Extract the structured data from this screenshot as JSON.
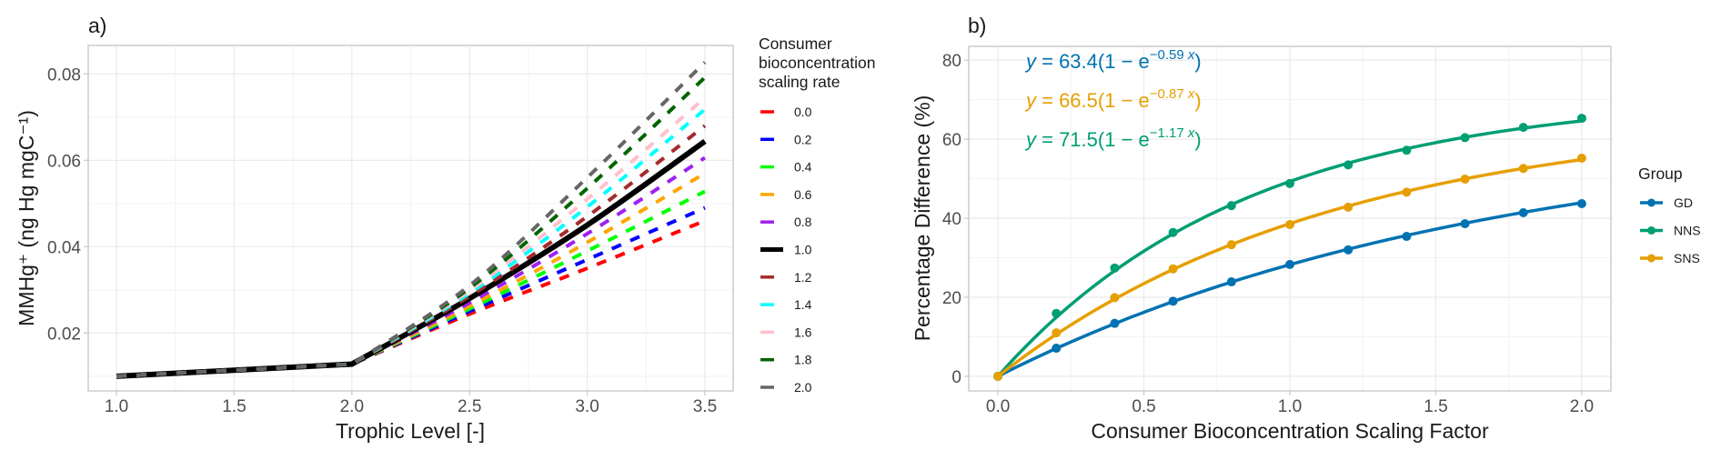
{
  "chart_data": [
    {
      "panel": "a)",
      "type": "line",
      "title": "",
      "xlabel": "Trophic Level [-]",
      "ylabel": "MMHg⁺ (ng Hg mgC⁻¹)",
      "xlim": [
        0.88,
        3.62
      ],
      "ylim": [
        0.0066,
        0.0866
      ],
      "x_ticks": [
        1.0,
        1.5,
        2.0,
        2.5,
        3.0,
        3.5
      ],
      "x_tick_labels": [
        "1.0",
        "1.5",
        "2.0",
        "2.5",
        "3.0",
        "3.5"
      ],
      "y_ticks": [
        0.02,
        0.04,
        0.06,
        0.08
      ],
      "y_tick_labels": [
        "0.02",
        "0.04",
        "0.06",
        "0.08"
      ],
      "grid": true,
      "legend": {
        "title_lines": [
          "Consumer",
          "bioconcentration",
          "scaling rate"
        ],
        "placement": "right"
      },
      "x": [
        1.0,
        1.5,
        2.0,
        2.5,
        3.0,
        3.5
      ],
      "series": [
        {
          "name": "0.0",
          "color": "#ff0000",
          "dashed": true,
          "values": [
            0.01,
            0.0114,
            0.0128,
            0.0244,
            0.035,
            0.046
          ]
        },
        {
          "name": "0.2",
          "color": "#0000ff",
          "dashed": true,
          "values": [
            0.01,
            0.0114,
            0.0128,
            0.025,
            0.037,
            0.049
          ]
        },
        {
          "name": "0.4",
          "color": "#00ff00",
          "dashed": true,
          "values": [
            0.01,
            0.0114,
            0.0128,
            0.0256,
            0.039,
            0.0528
          ]
        },
        {
          "name": "0.6",
          "color": "#ffa500",
          "dashed": true,
          "values": [
            0.01,
            0.0114,
            0.0128,
            0.0262,
            0.041,
            0.057
          ]
        },
        {
          "name": "0.8",
          "color": "#a020f0",
          "dashed": true,
          "values": [
            0.01,
            0.0114,
            0.0128,
            0.027,
            0.043,
            0.0606
          ]
        },
        {
          "name": "1.0",
          "color": "#000000",
          "dashed": false,
          "values": [
            0.01,
            0.0114,
            0.0128,
            0.028,
            0.045,
            0.0644
          ]
        },
        {
          "name": "1.2",
          "color": "#a52a2a",
          "dashed": true,
          "values": [
            0.01,
            0.0114,
            0.0128,
            0.0285,
            0.047,
            0.068
          ]
        },
        {
          "name": "1.4",
          "color": "#00ffff",
          "dashed": true,
          "values": [
            0.01,
            0.0114,
            0.0128,
            0.0292,
            0.0492,
            0.0718
          ]
        },
        {
          "name": "1.6",
          "color": "#ffc0cb",
          "dashed": true,
          "values": [
            0.01,
            0.0114,
            0.0128,
            0.0298,
            0.051,
            0.0745
          ]
        },
        {
          "name": "1.8",
          "color": "#006400",
          "dashed": true,
          "values": [
            0.01,
            0.0114,
            0.0128,
            0.0304,
            0.0535,
            0.0792
          ]
        },
        {
          "name": "2.0",
          "color": "#666666",
          "dashed": true,
          "values": [
            0.01,
            0.0114,
            0.0128,
            0.031,
            0.056,
            0.0827
          ]
        }
      ]
    },
    {
      "panel": "b)",
      "type": "line",
      "title": "",
      "xlabel": "Consumer Bioconcentration Scaling Factor",
      "ylabel": "Percentage Difference (%)",
      "xlim": [
        -0.1,
        2.1
      ],
      "ylim": [
        -3.7,
        83.5
      ],
      "x_ticks": [
        0.0,
        0.5,
        1.0,
        1.5,
        2.0
      ],
      "x_tick_labels": [
        "0.0",
        "0.5",
        "1.0",
        "1.5",
        "2.0"
      ],
      "y_ticks": [
        0,
        20,
        40,
        60,
        80
      ],
      "y_tick_labels": [
        "0",
        "20",
        "40",
        "60",
        "80"
      ],
      "grid": true,
      "legend": {
        "title": "Group",
        "placement": "right"
      },
      "x": [
        0.0,
        0.2,
        0.4,
        0.6,
        0.8,
        1.0,
        1.2,
        1.4,
        1.6,
        1.8,
        2.0
      ],
      "series": [
        {
          "name": "GD",
          "color": "#0072b2",
          "values": [
            0,
            7.1,
            13.4,
            19.0,
            23.9,
            28.3,
            32.0,
            35.4,
            38.6,
            41.4,
            43.7
          ],
          "fit": {
            "a": 63.4,
            "b": 0.59
          },
          "equation": {
            "coef": "63.4",
            "exp": "−0.59"
          }
        },
        {
          "name": "NNS",
          "color": "#009e73",
          "values": [
            0,
            15.9,
            27.4,
            36.4,
            43.2,
            48.8,
            53.5,
            57.2,
            60.4,
            63.0,
            65.3
          ],
          "fit": {
            "a": 71.5,
            "b": 1.17
          },
          "equation": {
            "coef": "71.5",
            "exp": "−1.17"
          }
        },
        {
          "name": "SNS",
          "color": "#e69f00",
          "values": [
            0,
            11.0,
            19.9,
            27.2,
            33.3,
            38.4,
            42.8,
            46.6,
            49.9,
            52.6,
            55.2
          ],
          "fit": {
            "a": 66.5,
            "b": 0.87
          },
          "equation": {
            "coef": "66.5",
            "exp": "−0.87"
          }
        }
      ],
      "equation_order": [
        "GD",
        "SNS",
        "NNS"
      ]
    }
  ]
}
